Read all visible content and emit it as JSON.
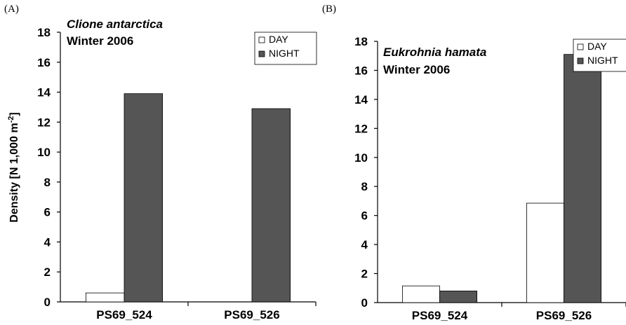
{
  "chart_data": [
    {
      "panel_label": "(A)",
      "type": "bar",
      "title": "Clione antarctica",
      "subtitle": "Winter 2006",
      "ylabel": "Density [N  1,000 m",
      "ylabel_sup": "-2",
      "ylabel_end": "]",
      "xlabel": "",
      "categories": [
        "PS69_524",
        "PS69_526"
      ],
      "ylim": [
        0,
        18
      ],
      "yticks": [
        "0",
        "2",
        "4",
        "6",
        "8",
        "10",
        "12",
        "14",
        "16",
        "18"
      ],
      "series": [
        {
          "name": "DAY",
          "color": "#ffffff",
          "values": [
            0.6,
            0
          ]
        },
        {
          "name": "NIGHT",
          "color": "#555555",
          "values": [
            13.9,
            12.9
          ]
        }
      ],
      "legend_position": "top-right",
      "grid": false
    },
    {
      "panel_label": "(B)",
      "type": "bar",
      "title": "Eukrohnia hamata",
      "subtitle": "Winter 2006",
      "ylabel": "",
      "xlabel": "",
      "categories": [
        "PS69_524",
        "PS69_526"
      ],
      "ylim": [
        0,
        18
      ],
      "yticks": [
        "0",
        "2",
        "4",
        "6",
        "8",
        "10",
        "12",
        "14",
        "16",
        "18"
      ],
      "series": [
        {
          "name": "DAY",
          "color": "#ffffff",
          "values": [
            1.15,
            6.85
          ]
        },
        {
          "name": "NIGHT",
          "color": "#555555",
          "values": [
            0.8,
            17.1
          ]
        }
      ],
      "legend_position": "top-right",
      "grid": false
    }
  ]
}
